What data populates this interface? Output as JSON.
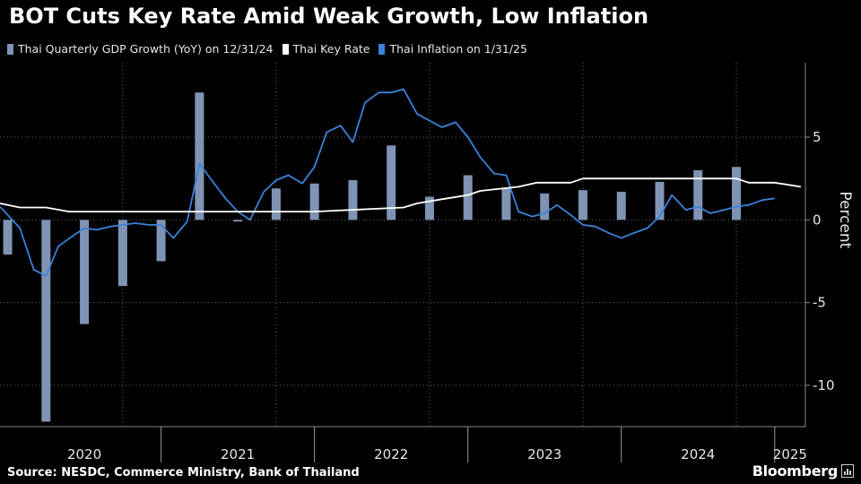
{
  "title": "BOT Cuts Key Rate Amid Weak Growth, Low Inflation",
  "legend": [
    {
      "label": "Thai Quarterly GDP Growth (YoY) on 12/31/24",
      "color": "#7f93b5"
    },
    {
      "label": "Thai Key Rate",
      "color": "#ffffff"
    },
    {
      "label": "Thai Inflation on 1/31/25",
      "color": "#3a83d8"
    }
  ],
  "source": "Source: NESDC, Commerce Ministry, Bank of Thailand",
  "brand": "Bloomberg",
  "colors": {
    "background": "#000000",
    "gdp": "#7f93b5",
    "rate": "#ffffff",
    "inflation": "#3a83d8",
    "grid": "#6a6a6a"
  },
  "chart_data": {
    "type": "bar+line",
    "title": "BOT Cuts Key Rate Amid Weak Growth, Low Inflation",
    "xlabel": "",
    "ylabel": "Percent",
    "ylim": [
      -12.5,
      9.5
    ],
    "yticks": [
      -10,
      -5,
      0,
      5
    ],
    "xlim": [
      2019.95,
      2025.2
    ],
    "year_labels": [
      {
        "label": "2020",
        "x": 2020.5
      },
      {
        "label": "2021",
        "x": 2021.5
      },
      {
        "label": "2022",
        "x": 2022.5
      },
      {
        "label": "2023",
        "x": 2023.5
      },
      {
        "label": "2024",
        "x": 2024.5
      },
      {
        "label": "2025",
        "x": 2025.1
      }
    ],
    "year_boundaries": [
      2021,
      2022,
      2023,
      2024,
      2025
    ],
    "quarter_gridlines": [
      2020.75,
      2021.75,
      2022.75,
      2023.75,
      2024.75
    ],
    "series": [
      {
        "name": "Thai Quarterly GDP Growth (YoY) on 12/31/24",
        "kind": "bar",
        "x": [
          2020.0,
          2020.25,
          2020.5,
          2020.75,
          2021.0,
          2021.25,
          2021.5,
          2021.75,
          2022.0,
          2022.25,
          2022.5,
          2022.75,
          2023.0,
          2023.25,
          2023.5,
          2023.75,
          2024.0,
          2024.25,
          2024.5,
          2024.75
        ],
        "values": [
          -2.1,
          -12.2,
          -6.3,
          -4.0,
          -2.5,
          7.7,
          -0.1,
          1.9,
          2.2,
          2.4,
          4.5,
          1.4,
          2.7,
          1.9,
          1.6,
          1.8,
          1.7,
          2.3,
          3.0,
          3.2
        ]
      },
      {
        "name": "Thai Key Rate",
        "kind": "line",
        "x": [
          2019.95,
          2020.08,
          2020.25,
          2020.4,
          2021.0,
          2022.0,
          2022.58,
          2022.67,
          2022.83,
          2023.0,
          2023.08,
          2023.33,
          2023.45,
          2023.67,
          2023.75,
          2024.0,
          2024.5,
          2024.75,
          2024.83,
          2025.0,
          2025.17
        ],
        "values": [
          1.0,
          0.75,
          0.75,
          0.5,
          0.5,
          0.5,
          0.75,
          1.0,
          1.25,
          1.5,
          1.75,
          2.0,
          2.25,
          2.25,
          2.5,
          2.5,
          2.5,
          2.5,
          2.25,
          2.25,
          2.0
        ]
      },
      {
        "name": "Thai Inflation on 1/31/25",
        "kind": "line",
        "x": [
          2019.95,
          2020.08,
          2020.17,
          2020.25,
          2020.33,
          2020.42,
          2020.5,
          2020.58,
          2020.67,
          2020.75,
          2020.83,
          2020.92,
          2021.0,
          2021.08,
          2021.17,
          2021.25,
          2021.33,
          2021.42,
          2021.5,
          2021.58,
          2021.67,
          2021.75,
          2021.83,
          2021.92,
          2022.0,
          2022.08,
          2022.17,
          2022.25,
          2022.33,
          2022.42,
          2022.5,
          2022.58,
          2022.67,
          2022.75,
          2022.83,
          2022.92,
          2023.0,
          2023.08,
          2023.17,
          2023.25,
          2023.33,
          2023.42,
          2023.5,
          2023.58,
          2023.67,
          2023.75,
          2023.83,
          2023.92,
          2024.0,
          2024.08,
          2024.17,
          2024.25,
          2024.33,
          2024.42,
          2024.5,
          2024.58,
          2024.67,
          2024.75,
          2024.83,
          2024.92,
          2025.0
        ],
        "values": [
          0.8,
          -0.5,
          -3.0,
          -3.4,
          -1.6,
          -1.0,
          -0.5,
          -0.6,
          -0.4,
          -0.3,
          -0.2,
          -0.3,
          -0.3,
          -1.1,
          -0.1,
          3.4,
          2.4,
          1.3,
          0.5,
          0.0,
          1.7,
          2.4,
          2.7,
          2.2,
          3.2,
          5.3,
          5.7,
          4.7,
          7.1,
          7.7,
          7.7,
          7.9,
          6.4,
          6.0,
          5.6,
          5.9,
          5.0,
          3.8,
          2.8,
          2.7,
          0.5,
          0.2,
          0.4,
          0.9,
          0.3,
          -0.3,
          -0.4,
          -0.8,
          -1.1,
          -0.8,
          -0.5,
          0.2,
          1.5,
          0.6,
          0.8,
          0.4,
          0.6,
          0.8,
          0.9,
          1.2,
          1.3
        ]
      }
    ]
  }
}
